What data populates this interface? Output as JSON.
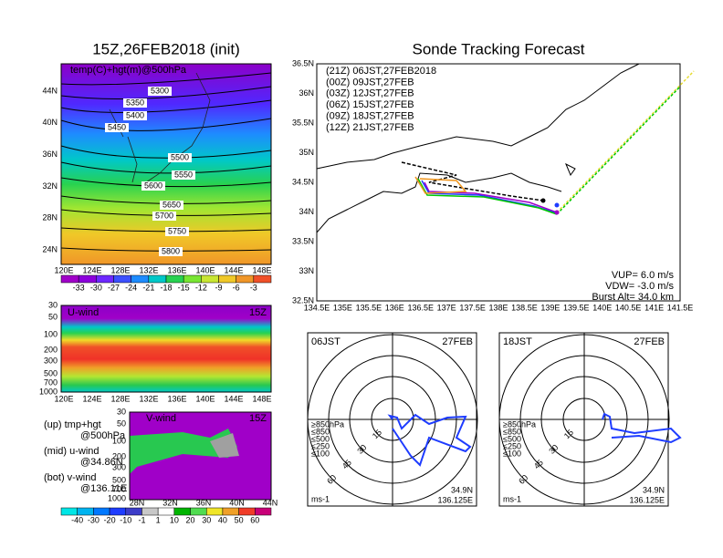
{
  "left": {
    "map500": {
      "title": "15Z,26FEB2018 (init)",
      "label": "temp(C)+hgt(m)@500hPa",
      "contour_labels": [
        "5300",
        "5350",
        "5400",
        "5450",
        "5500",
        "5550",
        "5600",
        "5650",
        "5700",
        "5750",
        "5800"
      ],
      "lat_labels": [
        "44N",
        "40N",
        "36N",
        "32N",
        "28N",
        "24N"
      ],
      "lon_labels": [
        "120E",
        "124E",
        "128E",
        "132E",
        "136E",
        "140E",
        "144E",
        "148E"
      ],
      "colorbar_labels": [
        "-33",
        "-30",
        "-27",
        "-24",
        "-21",
        "-18",
        "-15",
        "-12",
        "-9",
        "-6",
        "-3"
      ]
    },
    "uwind": {
      "label": "U-wind",
      "time": "15Z",
      "p_labels": [
        "30",
        "50",
        "100",
        "200",
        "300",
        "500",
        "700",
        "1000"
      ],
      "lon_labels": [
        "120E",
        "124E",
        "128E",
        "132E",
        "136E",
        "140E",
        "144E",
        "148E"
      ]
    },
    "vwind": {
      "label": "V-wind",
      "time": "15Z",
      "p_labels": [
        "30",
        "50",
        "100",
        "200",
        "300",
        "500",
        "700",
        "1000"
      ],
      "lat_labels": [
        "28N",
        "32N",
        "36N",
        "40N",
        "44N"
      ]
    },
    "notes": [
      "(up) tmp+hgt",
      "@500hPa",
      "(mid) u-wind",
      "@34.86N",
      "(bot) v-wind",
      "@136.11E"
    ],
    "colorbar2_labels": [
      "-40",
      "-30",
      "-20",
      "-10",
      "-1",
      "1",
      "10",
      "20",
      "30",
      "40",
      "50",
      "60"
    ]
  },
  "right": {
    "title": "Sonde Tracking Forecast",
    "legend": [
      {
        "text": "(21Z) 06JST,27FEB2018",
        "color": "#000000"
      },
      {
        "text": "(00Z) 09JST,27FEB",
        "color": "#a000c8"
      },
      {
        "text": "(03Z) 12JST,27FEB",
        "color": "#1e3cff"
      },
      {
        "text": "(06Z) 15JST,27FEB",
        "color": "#00c800"
      },
      {
        "text": "(09Z) 18JST,27FEB",
        "color": "#e6dc32"
      },
      {
        "text": "(12Z) 21JST,27FEB",
        "color": "#f0961e"
      }
    ],
    "lat_labels": [
      "36.5N",
      "36N",
      "35.5N",
      "35N",
      "34.5N",
      "34N",
      "33.5N",
      "33N",
      "32.5N"
    ],
    "lon_labels": [
      "134.5E",
      "135E",
      "135.5E",
      "136E",
      "136.5E",
      "137E",
      "137.5E",
      "138E",
      "138.5E",
      "139E",
      "139.5E",
      "140E",
      "140.5E",
      "141E",
      "141.5E"
    ],
    "params": [
      "VUP= 6.0 m/s",
      "VDW= -3.0 m/s",
      "Burst Alt= 34.0 km"
    ],
    "hodographs": [
      {
        "time": "06JST",
        "date": "27FEB",
        "levels": [
          "≥850hPa",
          "≤850",
          "≤500",
          "≤250",
          "≤100"
        ],
        "rings": [
          "15",
          "30",
          "45",
          "60"
        ],
        "unit": "ms-1",
        "lat": "34.9N",
        "lon": "136.125E"
      },
      {
        "time": "18JST",
        "date": "27FEB",
        "levels": [
          "≥850hPa",
          "≤850",
          "≤500",
          "≤250",
          "≤100"
        ],
        "rings": [
          "15",
          "30",
          "45",
          "60"
        ],
        "unit": "ms-1",
        "lat": "34.9N",
        "lon": "136.125E"
      }
    ]
  }
}
